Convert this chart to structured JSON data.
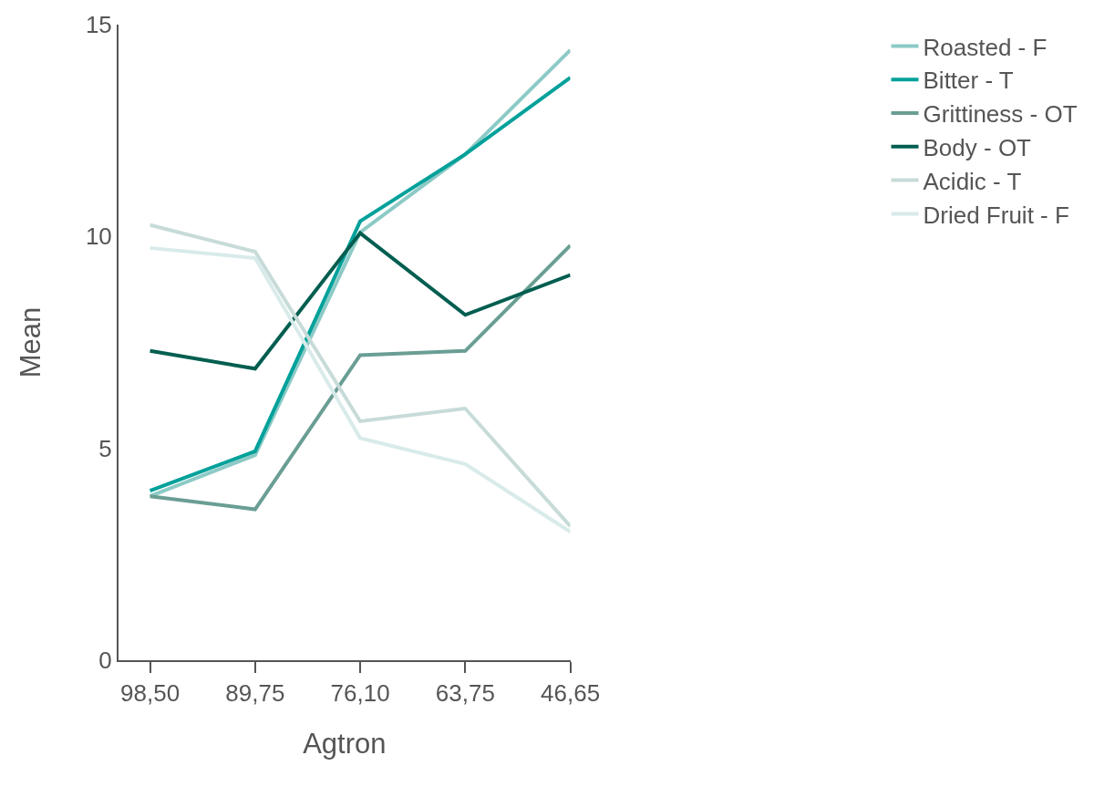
{
  "chart_data": {
    "type": "line",
    "xlabel": "Agtron",
    "ylabel": "Mean",
    "categories": [
      "98,50",
      "89,75",
      "76,10",
      "63,75",
      "46,65"
    ],
    "ylim": [
      0,
      15
    ],
    "yticks": [
      0,
      5,
      10,
      15
    ],
    "legend": "right",
    "marker": "none",
    "line_style": "solid",
    "series": [
      {
        "name": "Roasted - F",
        "color": "#8ccac6",
        "values": [
          3.87,
          4.84,
          10.1,
          11.94,
          14.4
        ]
      },
      {
        "name": "Bitter - T",
        "color": "#00a19a",
        "values": [
          4.0,
          4.93,
          10.36,
          11.94,
          13.75
        ]
      },
      {
        "name": "Grittiness - OT",
        "color": "#6a9e94",
        "values": [
          3.87,
          3.56,
          7.2,
          7.3,
          9.79
        ]
      },
      {
        "name": "Body - OT",
        "color": "#005e50",
        "values": [
          7.3,
          6.88,
          10.08,
          8.15,
          9.09
        ]
      },
      {
        "name": "Acidic - T",
        "color": "#c7dbd8",
        "values": [
          10.27,
          9.64,
          5.64,
          5.94,
          3.16
        ]
      },
      {
        "name": "Dried Fruit - F",
        "color": "#d8ebea",
        "values": [
          9.73,
          9.49,
          5.24,
          4.63,
          3.03
        ]
      }
    ]
  }
}
